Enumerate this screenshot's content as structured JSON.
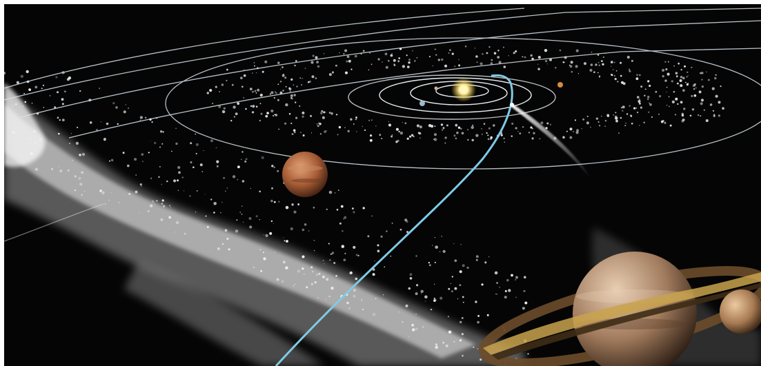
{
  "scene": {
    "subject": "solar-system",
    "colors": {
      "space": "#050505",
      "orbit_line": "#d8e4ec",
      "comet_trajectory": "#7fcbe6",
      "sun": "#ffe680",
      "dust": "#e9e9e9",
      "mars_like_planet": "#b8734a",
      "ringed_planet": "#c9a98c",
      "ring": "#b08a4a",
      "moon": "#c7a078"
    },
    "objects": [
      {
        "name": "sun"
      },
      {
        "name": "inner-orbits"
      },
      {
        "name": "asteroid-belt"
      },
      {
        "name": "outer-orbits"
      },
      {
        "name": "comet"
      },
      {
        "name": "comet-trajectory"
      },
      {
        "name": "mars-like-planet"
      },
      {
        "name": "dust-cloud"
      },
      {
        "name": "ringed-planet"
      },
      {
        "name": "small-moon"
      }
    ]
  }
}
